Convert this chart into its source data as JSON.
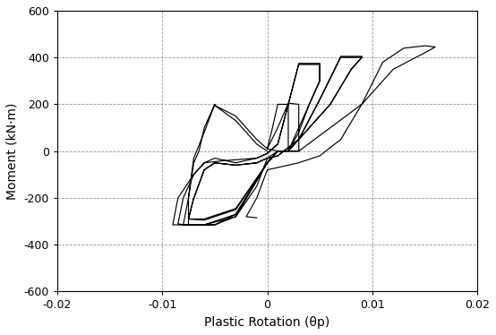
{
  "title": "",
  "xlabel": "Plastic Rotation (θp)",
  "ylabel": "Moment (kN·m)",
  "xlim": [
    -0.02,
    0.02
  ],
  "ylim": [
    -600,
    600
  ],
  "xticks": [
    -0.02,
    -0.01,
    0,
    0.01,
    0.02
  ],
  "yticks": [
    -600,
    -400,
    -200,
    0,
    200,
    400,
    600
  ],
  "line_color": "black",
  "background_color": "white",
  "grid_color": "#999999",
  "grid_linestyle": "--",
  "grid_linewidth": 0.6
}
